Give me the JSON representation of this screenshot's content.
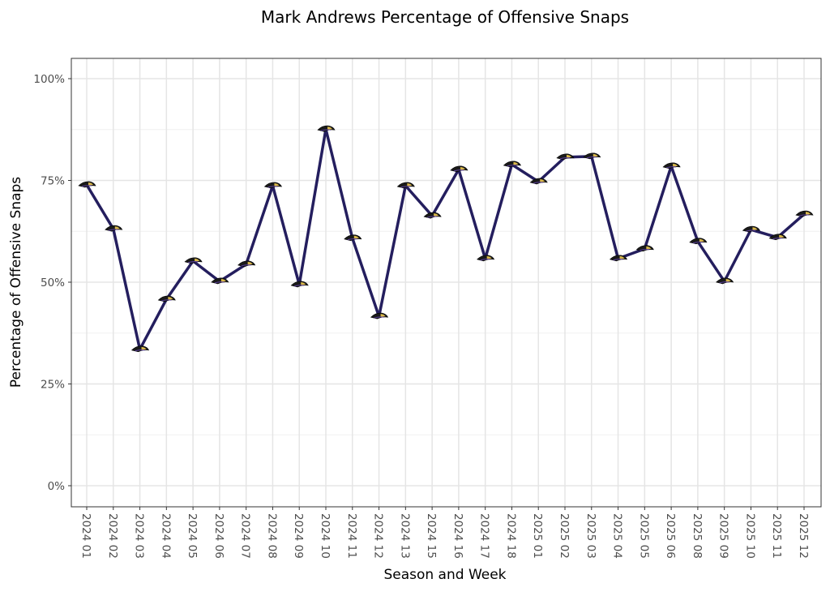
{
  "chart_data": {
    "type": "line",
    "title": "Mark Andrews Percentage of Offensive Snaps",
    "xlabel": "Season and Week",
    "ylabel": "Percentage of Offensive Snaps",
    "ylim": [
      0,
      1
    ],
    "yticks": [
      0,
      0.25,
      0.5,
      0.75,
      1.0
    ],
    "ytick_labels": [
      "0%",
      "25%",
      "50%",
      "75%",
      "100%"
    ],
    "grid": true,
    "categories": [
      "2024 01",
      "2024 02",
      "2024 03",
      "2024 04",
      "2024 05",
      "2024 06",
      "2024 07",
      "2024 08",
      "2024 09",
      "2024 10",
      "2024 11",
      "2024 12",
      "2024 13",
      "2024 15",
      "2024 16",
      "2024 17",
      "2024 18",
      "2025 01",
      "2025 02",
      "2025 03",
      "2025 04",
      "2025 05",
      "2025 06",
      "2025 08",
      "2025 09",
      "2025 10",
      "2025 11",
      "2025 12"
    ],
    "values": [
      0.739,
      0.631,
      0.335,
      0.458,
      0.552,
      0.502,
      0.544,
      0.737,
      0.494,
      0.876,
      0.608,
      0.416,
      0.737,
      0.663,
      0.777,
      0.558,
      0.789,
      0.747,
      0.807,
      0.809,
      0.558,
      0.582,
      0.785,
      0.6,
      0.502,
      0.629,
      0.61,
      0.667
    ],
    "line_color": "#241e5e",
    "marker": "ravens-logo-icon"
  }
}
